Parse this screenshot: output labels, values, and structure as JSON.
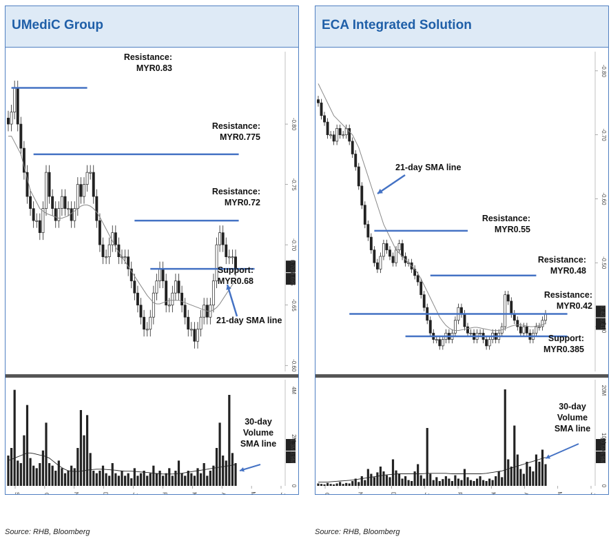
{
  "source_left": "Source: RHB, Bloomberg",
  "source_right": "Source: RHB, Bloomberg",
  "colors": {
    "title": "#1f5fa8",
    "header_bg": "#deeaf6",
    "level_line": "#4472c4",
    "sma": "#888888",
    "candle": "#222222",
    "arrow": "#4472c4"
  },
  "chart_data": [
    {
      "type": "candlestick",
      "title": "UMediC Group",
      "y_ticks": [
        0.8,
        0.75,
        0.7,
        0.65,
        0.6
      ],
      "ylim": [
        0.595,
        0.86
      ],
      "x_ticks": [
        "Sep",
        "Oct",
        "Nov",
        "Dec",
        "Jan",
        "Feb",
        "Mar",
        "Apr",
        "May",
        "Jun"
      ],
      "x_year_labels": [
        "2023",
        "2024"
      ],
      "vol_ticks": [
        "4M",
        "2M",
        "0"
      ],
      "vol_max": 4.2,
      "last_price_labels": [
        "0.705",
        "0.695"
      ],
      "last_vol_labels": [
        "1.3M",
        "0.9M"
      ],
      "close": [
        0.8,
        0.81,
        0.83,
        0.8,
        0.78,
        0.76,
        0.74,
        0.73,
        0.72,
        0.72,
        0.71,
        0.73,
        0.76,
        0.74,
        0.73,
        0.72,
        0.73,
        0.74,
        0.73,
        0.73,
        0.72,
        0.73,
        0.75,
        0.74,
        0.75,
        0.76,
        0.76,
        0.74,
        0.72,
        0.7,
        0.69,
        0.69,
        0.7,
        0.71,
        0.7,
        0.69,
        0.69,
        0.69,
        0.68,
        0.67,
        0.66,
        0.65,
        0.64,
        0.63,
        0.63,
        0.64,
        0.66,
        0.67,
        0.68,
        0.67,
        0.65,
        0.65,
        0.66,
        0.67,
        0.66,
        0.65,
        0.64,
        0.63,
        0.63,
        0.62,
        0.63,
        0.64,
        0.65,
        0.64,
        0.65,
        0.67,
        0.7,
        0.71,
        0.7,
        0.69,
        0.69,
        0.69,
        0.68
      ],
      "sma": [
        0.79,
        0.79,
        0.785,
        0.78,
        0.775,
        0.765,
        0.755,
        0.745,
        0.74,
        0.735,
        0.73,
        0.728,
        0.726,
        0.725,
        0.724,
        0.723,
        0.722,
        0.722,
        0.723,
        0.724,
        0.726,
        0.728,
        0.73,
        0.732,
        0.733,
        0.733,
        0.732,
        0.73,
        0.727,
        0.723,
        0.718,
        0.713,
        0.708,
        0.703,
        0.698,
        0.694,
        0.69,
        0.686,
        0.682,
        0.678,
        0.674,
        0.67,
        0.666,
        0.662,
        0.658,
        0.655,
        0.652,
        0.651,
        0.651,
        0.652,
        0.653,
        0.654,
        0.654,
        0.654,
        0.654,
        0.653,
        0.652,
        0.651,
        0.65,
        0.649,
        0.648,
        0.647,
        0.646,
        0.645,
        0.645,
        0.646,
        0.648,
        0.651,
        0.655,
        0.659,
        0.663,
        0.667,
        0.67
      ],
      "volume": [
        1.2,
        1.5,
        3.8,
        1.0,
        0.9,
        2.0,
        3.2,
        1.1,
        0.8,
        0.7,
        0.9,
        1.4,
        2.5,
        0.9,
        0.8,
        0.6,
        1.0,
        0.7,
        0.5,
        0.6,
        0.8,
        0.7,
        1.5,
        3.0,
        2.0,
        2.8,
        1.3,
        0.6,
        0.5,
        0.6,
        0.8,
        0.5,
        0.4,
        0.9,
        0.5,
        0.4,
        0.6,
        0.4,
        0.5,
        0.3,
        0.7,
        0.4,
        0.5,
        0.6,
        0.4,
        0.5,
        0.8,
        0.5,
        0.6,
        0.4,
        0.5,
        0.7,
        0.4,
        0.6,
        1.0,
        0.5,
        0.4,
        0.6,
        0.5,
        0.4,
        0.7,
        0.5,
        0.9,
        0.4,
        0.6,
        0.8,
        1.5,
        2.5,
        1.2,
        1.0,
        3.6,
        1.3,
        0.9
      ],
      "vol_sma": [
        1.0,
        1.05,
        1.1,
        1.15,
        1.2,
        1.25,
        1.3,
        1.3,
        1.28,
        1.25,
        1.22,
        1.2,
        1.15,
        1.1,
        1.0,
        0.9,
        0.8,
        0.72,
        0.65,
        0.6,
        0.58,
        0.57,
        0.57,
        0.58,
        0.6,
        0.62,
        0.64,
        0.65,
        0.66,
        0.66,
        0.66,
        0.65,
        0.64,
        0.63,
        0.62,
        0.6,
        0.59,
        0.58,
        0.58,
        0.58,
        0.57,
        0.56,
        0.55,
        0.54,
        0.53,
        0.52,
        0.5,
        0.49,
        0.48,
        0.47,
        0.47,
        0.47,
        0.47,
        0.48,
        0.49,
        0.5,
        0.52,
        0.54,
        0.56,
        0.58,
        0.6,
        0.62,
        0.64,
        0.66,
        0.68,
        0.7,
        0.72,
        0.74,
        0.76,
        0.78,
        0.8,
        0.82,
        0.84
      ],
      "levels": [
        {
          "kind": "Resistance",
          "value": 0.83,
          "label": "Resistance:",
          "price": "MYR0.83",
          "i0": 1,
          "i1": 25
        },
        {
          "kind": "Resistance",
          "value": 0.775,
          "label": "Resistance:",
          "price": "MYR0.775",
          "i0": 8,
          "i1": 73
        },
        {
          "kind": "Resistance",
          "value": 0.72,
          "label": "Resistance:",
          "price": "MYR0.72",
          "i0": 40,
          "i1": 73
        },
        {
          "kind": "Support",
          "value": 0.68,
          "label": "Support:",
          "price": "MYR0.68",
          "i0": 45,
          "i1": 78
        }
      ],
      "sma_label": "21-day SMA line",
      "vol_label_lines": [
        "30-day",
        "Volume",
        "SMA line"
      ]
    },
    {
      "type": "candlestick",
      "title": "ECA Integrated Solution",
      "y_ticks": [
        0.8,
        0.7,
        0.6,
        0.5,
        0.4
      ],
      "ylim": [
        0.33,
        0.83
      ],
      "x_ticks": [
        "Oct",
        "Nov",
        "Dec",
        "Jan",
        "Feb",
        "Mar",
        "Apr",
        "May",
        "Jun"
      ],
      "x_year_labels": [
        "2023",
        "2024"
      ],
      "vol_ticks": [
        "20M",
        "10M",
        "0"
      ],
      "vol_max": 22,
      "last_price_labels": [
        "0.42",
        "0.41"
      ],
      "last_vol_labels": [
        "10.5M",
        "6.9M"
      ],
      "close": [
        0.75,
        0.73,
        0.72,
        0.7,
        0.7,
        0.69,
        0.71,
        0.7,
        0.7,
        0.71,
        0.69,
        0.67,
        0.65,
        0.62,
        0.59,
        0.56,
        0.54,
        0.52,
        0.5,
        0.49,
        0.51,
        0.53,
        0.52,
        0.51,
        0.5,
        0.52,
        0.53,
        0.51,
        0.5,
        0.5,
        0.49,
        0.48,
        0.47,
        0.45,
        0.43,
        0.41,
        0.39,
        0.38,
        0.38,
        0.37,
        0.38,
        0.39,
        0.38,
        0.39,
        0.41,
        0.43,
        0.42,
        0.4,
        0.39,
        0.39,
        0.38,
        0.39,
        0.39,
        0.38,
        0.37,
        0.38,
        0.39,
        0.38,
        0.39,
        0.4,
        0.45,
        0.44,
        0.42,
        0.41,
        0.4,
        0.39,
        0.4,
        0.39,
        0.38,
        0.39,
        0.4,
        0.4,
        0.41,
        0.42
      ],
      "sma": [
        0.78,
        0.77,
        0.76,
        0.75,
        0.74,
        0.73,
        0.725,
        0.72,
        0.715,
        0.71,
        0.705,
        0.7,
        0.69,
        0.68,
        0.665,
        0.65,
        0.635,
        0.62,
        0.605,
        0.59,
        0.575,
        0.56,
        0.55,
        0.54,
        0.53,
        0.52,
        0.515,
        0.51,
        0.505,
        0.5,
        0.495,
        0.49,
        0.483,
        0.475,
        0.465,
        0.455,
        0.445,
        0.435,
        0.425,
        0.415,
        0.408,
        0.402,
        0.398,
        0.395,
        0.394,
        0.394,
        0.395,
        0.396,
        0.397,
        0.398,
        0.399,
        0.399,
        0.398,
        0.397,
        0.396,
        0.395,
        0.394,
        0.394,
        0.394,
        0.395,
        0.397,
        0.399,
        0.401,
        0.402,
        0.403,
        0.403,
        0.402,
        0.401,
        0.4,
        0.4,
        0.401,
        0.402,
        0.403,
        0.405
      ],
      "volume": [
        0.5,
        0.4,
        0.3,
        0.6,
        0.4,
        0.3,
        0.5,
        0.8,
        0.4,
        0.6,
        0.5,
        1.0,
        1.5,
        0.8,
        2.0,
        1.2,
        3.5,
        2.5,
        1.8,
        2.8,
        4.0,
        3.0,
        2.2,
        1.8,
        5.5,
        3.2,
        2.5,
        1.5,
        2.0,
        1.2,
        1.0,
        3.0,
        4.5,
        2.2,
        1.5,
        12.0,
        2.5,
        1.2,
        1.8,
        1.0,
        1.4,
        2.0,
        1.5,
        1.0,
        2.2,
        1.5,
        1.2,
        3.5,
        1.8,
        1.2,
        1.0,
        1.5,
        2.0,
        1.2,
        1.0,
        1.5,
        1.2,
        2.0,
        3.0,
        1.8,
        20.0,
        5.5,
        4.0,
        12.5,
        6.5,
        3.5,
        2.5,
        5.0,
        4.0,
        3.0,
        6.5,
        5.0,
        7.5,
        4.5
      ],
      "vol_sma": [
        0.8,
        0.8,
        0.8,
        0.8,
        0.85,
        0.9,
        0.95,
        1.0,
        1.05,
        1.1,
        1.15,
        1.2,
        1.3,
        1.4,
        1.5,
        1.6,
        1.7,
        1.8,
        1.9,
        2.0,
        2.1,
        2.2,
        2.3,
        2.35,
        2.4,
        2.45,
        2.5,
        2.5,
        2.5,
        2.5,
        2.5,
        2.5,
        2.5,
        2.5,
        2.55,
        2.6,
        2.6,
        2.6,
        2.6,
        2.6,
        2.6,
        2.6,
        2.55,
        2.5,
        2.5,
        2.5,
        2.5,
        2.5,
        2.5,
        2.5,
        2.5,
        2.5,
        2.5,
        2.55,
        2.6,
        2.7,
        2.8,
        2.9,
        3.0,
        3.1,
        3.3,
        3.5,
        3.7,
        3.9,
        4.1,
        4.3,
        4.5,
        4.7,
        4.9,
        5.1,
        5.3,
        5.5,
        5.7,
        5.9
      ],
      "levels": [
        {
          "kind": "Resistance",
          "value": 0.55,
          "label": "Resistance:",
          "price": "MYR0.55",
          "i0": 18,
          "i1": 48
        },
        {
          "kind": "Resistance",
          "value": 0.48,
          "label": "Resistance:",
          "price": "MYR0.48",
          "i0": 36,
          "i1": 70
        },
        {
          "kind": "Resistance",
          "value": 0.42,
          "label": "Resistance:",
          "price": "MYR0.42",
          "i0": 10,
          "i1": 80
        },
        {
          "kind": "Support",
          "value": 0.385,
          "label": "Support:",
          "price": "MYR0.385",
          "i0": 28,
          "i1": 80
        }
      ],
      "sma_label": "21-day SMA line",
      "vol_label_lines": [
        "30-day",
        "Volume",
        "SMA line"
      ]
    }
  ]
}
